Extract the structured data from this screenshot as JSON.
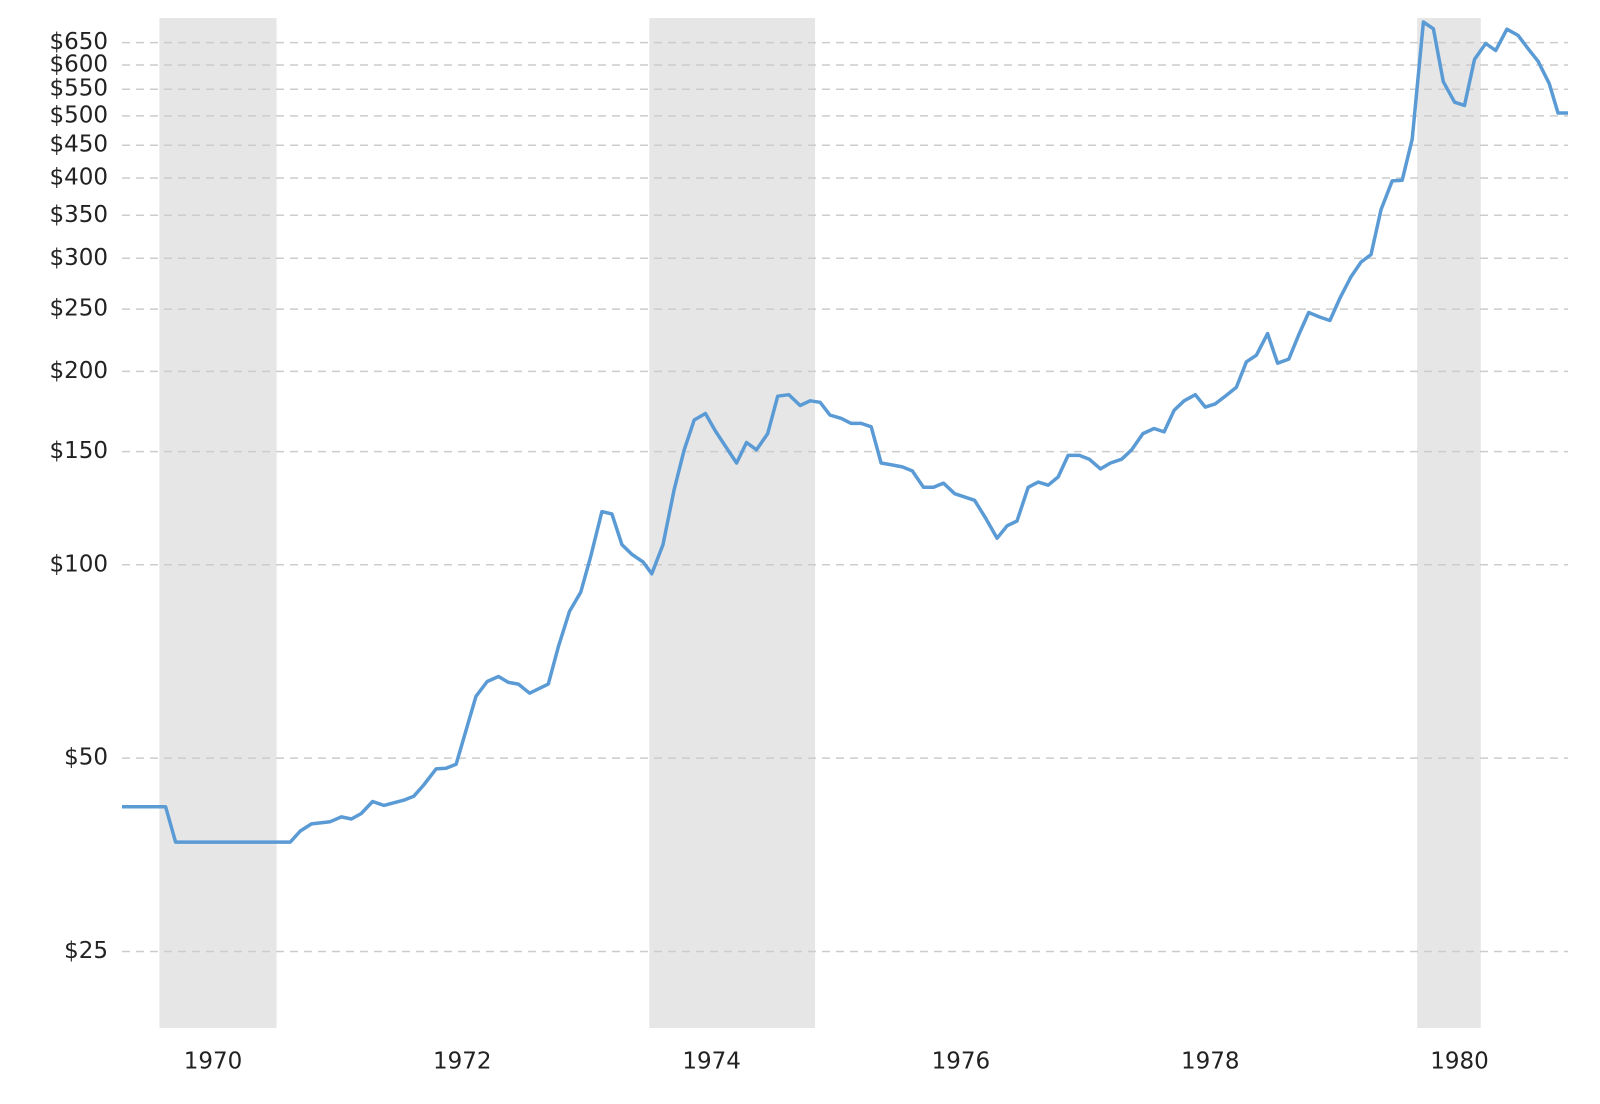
{
  "chart_data": {
    "type": "line",
    "log_scale": true,
    "grid": true,
    "color": "#5b9bd5",
    "shade_color": "#e6e6e6",
    "recessions": [
      [
        1969.57,
        1970.51
      ],
      [
        1973.5,
        1974.83
      ],
      [
        1979.66,
        1980.17
      ]
    ],
    "x": [
      1969.27,
      1969.62,
      1969.7,
      1970.62,
      1970.7,
      1970.79,
      1970.94,
      1971.03,
      1971.11,
      1971.19,
      1971.28,
      1971.37,
      1971.53,
      1971.61,
      1971.69,
      1971.79,
      1971.87,
      1971.95,
      1972.11,
      1972.2,
      1972.29,
      1972.37,
      1972.45,
      1972.54,
      1972.69,
      1972.77,
      1972.86,
      1972.95,
      1973.03,
      1973.12,
      1973.2,
      1973.28,
      1973.36,
      1973.45,
      1973.52,
      1973.61,
      1973.7,
      1973.78,
      1973.86,
      1973.95,
      1974.03,
      1974.12,
      1974.2,
      1974.28,
      1974.36,
      1974.45,
      1974.53,
      1974.62,
      1974.71,
      1974.79,
      1974.87,
      1974.95,
      1975.04,
      1975.12,
      1975.2,
      1975.28,
      1975.36,
      1975.45,
      1975.53,
      1975.61,
      1975.7,
      1975.78,
      1975.86,
      1975.95,
      1976.11,
      1976.2,
      1976.29,
      1976.37,
      1976.45,
      1976.54,
      1976.62,
      1976.7,
      1976.78,
      1976.86,
      1976.95,
      1977.03,
      1977.12,
      1977.2,
      1977.29,
      1977.37,
      1977.46,
      1977.55,
      1977.63,
      1977.71,
      1977.79,
      1977.88,
      1977.96,
      1978.04,
      1978.12,
      1978.21,
      1978.29,
      1978.37,
      1978.46,
      1978.54,
      1978.63,
      1978.71,
      1978.79,
      1978.88,
      1978.96,
      1979.04,
      1979.13,
      1979.21,
      1979.29,
      1979.37,
      1979.46,
      1979.54,
      1979.62,
      1979.71,
      1979.79,
      1979.87,
      1979.96,
      1980.04,
      1980.12,
      1980.21,
      1980.29,
      1980.38,
      1980.47,
      1980.55,
      1980.63,
      1980.72,
      1980.79,
      1980.87
    ],
    "values": [
      42,
      42,
      37,
      37,
      38.5,
      39.5,
      39.8,
      40.5,
      40.2,
      41,
      42.8,
      42.2,
      43,
      43.6,
      45.4,
      48.1,
      48.2,
      48.9,
      62.4,
      65.8,
      67,
      65.6,
      65.2,
      63.1,
      65.2,
      74.5,
      84.6,
      90.6,
      103,
      121,
      120,
      107.5,
      103.8,
      101,
      96.8,
      107.5,
      131,
      151,
      168,
      172,
      161.5,
      152,
      144,
      155,
      151,
      160,
      183,
      184,
      177,
      180,
      179,
      171,
      169,
      166,
      166,
      164,
      144,
      143,
      142,
      140,
      132,
      132,
      134,
      129,
      126,
      118,
      110,
      115,
      117,
      132,
      134.5,
      133,
      137,
      148,
      148,
      146,
      141,
      144,
      146,
      151,
      160,
      163,
      161,
      174,
      180,
      184,
      176,
      178,
      183,
      189,
      207,
      212,
      229,
      206,
      209,
      228,
      247,
      243,
      240,
      260,
      281,
      296,
      304,
      357,
      396,
      397,
      460,
      700,
      683,
      565,
      525,
      519,
      612,
      648,
      632,
      682,
      667,
      636,
      608,
      561,
      505,
      505
    ],
    "xlim": [
      1969.27,
      1980.87
    ],
    "xticks": [
      1970,
      1972,
      1974,
      1976,
      1978,
      1980
    ],
    "ylim": [
      19,
      710
    ],
    "yticks": [
      {
        "value": 25,
        "label": "$25"
      },
      {
        "value": 50,
        "label": "$50"
      },
      {
        "value": 100,
        "label": "$100"
      },
      {
        "value": 150,
        "label": "$150"
      },
      {
        "value": 200,
        "label": "$200"
      },
      {
        "value": 250,
        "label": "$250"
      },
      {
        "value": 300,
        "label": "$300"
      },
      {
        "value": 350,
        "label": "$350"
      },
      {
        "value": 400,
        "label": "$400"
      },
      {
        "value": 450,
        "label": "$450"
      },
      {
        "value": 500,
        "label": "$500"
      },
      {
        "value": 550,
        "label": "$550"
      },
      {
        "value": 600,
        "label": "$600"
      },
      {
        "value": 650,
        "label": "$650"
      }
    ]
  }
}
